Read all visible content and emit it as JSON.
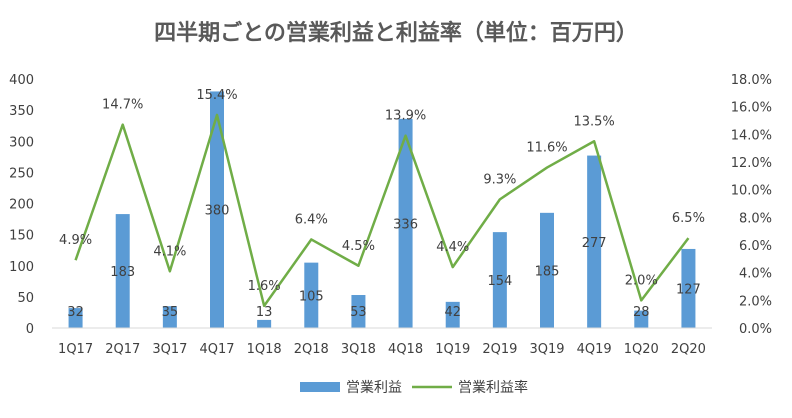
{
  "chart_data": {
    "type": "bar+line",
    "title": "四半期ごとの営業利益と利益率（単位：百万円）",
    "categories": [
      "1Q17",
      "2Q17",
      "3Q17",
      "4Q17",
      "1Q18",
      "2Q18",
      "3Q18",
      "4Q18",
      "1Q19",
      "2Q19",
      "3Q19",
      "4Q19",
      "1Q20",
      "2Q20"
    ],
    "series": [
      {
        "name": "営業利益",
        "type": "bar",
        "axis": "left",
        "color": "#5B9BD5",
        "values": [
          32,
          183,
          35,
          380,
          13,
          105,
          53,
          336,
          42,
          154,
          185,
          277,
          28,
          127
        ],
        "labels": [
          "32",
          "183",
          "35",
          "380",
          "13",
          "105",
          "53",
          "336",
          "42",
          "154",
          "185",
          "277",
          "28",
          "127"
        ]
      },
      {
        "name": "営業利益率",
        "type": "line",
        "axis": "right",
        "color": "#70AD47",
        "values": [
          4.9,
          14.7,
          4.1,
          15.4,
          1.6,
          6.4,
          4.5,
          13.9,
          4.4,
          9.3,
          11.6,
          13.5,
          2.0,
          6.5
        ],
        "labels": [
          "4.9%",
          "14.7%",
          "4.1%",
          "15.4%",
          "1.6%",
          "6.4%",
          "4.5%",
          "13.9%",
          "4.4%",
          "9.3%",
          "11.6%",
          "13.5%",
          "2.0%",
          "6.5%"
        ]
      }
    ],
    "y_left": {
      "min": 0,
      "max": 400,
      "ticks": [
        "0",
        "50",
        "100",
        "150",
        "200",
        "250",
        "300",
        "350",
        "400"
      ]
    },
    "y_right": {
      "min": 0,
      "max": 18,
      "ticks": [
        "0.0%",
        "2.0%",
        "4.0%",
        "6.0%",
        "8.0%",
        "10.0%",
        "12.0%",
        "14.0%",
        "16.0%",
        "18.0%"
      ]
    },
    "legend": {
      "position": "bottom",
      "items": [
        "営業利益",
        "営業利益率"
      ]
    },
    "grid": false
  }
}
